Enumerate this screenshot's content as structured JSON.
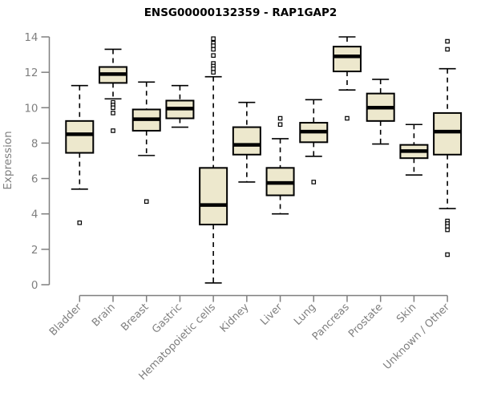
{
  "chart_data": {
    "type": "boxplot",
    "title": "ENSG00000132359 - RAP1GAP2",
    "xlabel": "",
    "ylabel": "Expression",
    "ylim": [
      0,
      14
    ],
    "yticks": [
      0,
      2,
      4,
      6,
      8,
      10,
      12,
      14
    ],
    "grid": false,
    "legend": "none",
    "categories": [
      "Bladder",
      "Brain",
      "Breast",
      "Gastric",
      "Hematopoietic cells",
      "Kidney",
      "Liver",
      "Lung",
      "Pancreas",
      "Prostate",
      "Skin",
      "Unknown / Other"
    ],
    "boxes": [
      {
        "category": "Bladder",
        "whisker_low": 5.4,
        "q1": 7.45,
        "median": 8.5,
        "q3": 9.25,
        "whisker_high": 11.25,
        "outliers": [
          3.5
        ]
      },
      {
        "category": "Brain",
        "whisker_low": 10.5,
        "q1": 11.4,
        "median": 11.9,
        "q3": 12.3,
        "whisker_high": 13.3,
        "outliers": [
          10.3,
          10.15,
          10.0,
          9.7,
          8.7
        ]
      },
      {
        "category": "Breast",
        "whisker_low": 7.3,
        "q1": 8.7,
        "median": 9.35,
        "q3": 9.9,
        "whisker_high": 11.45,
        "outliers": [
          4.7
        ]
      },
      {
        "category": "Gastric",
        "whisker_low": 8.9,
        "q1": 9.4,
        "median": 9.95,
        "q3": 10.4,
        "whisker_high": 11.25,
        "outliers": []
      },
      {
        "category": "Hematopoietic cells",
        "whisker_low": 0.1,
        "q1": 3.4,
        "median": 4.5,
        "q3": 6.6,
        "whisker_high": 11.75,
        "outliers": [
          13.9,
          13.65,
          13.5,
          13.3,
          12.95,
          12.5,
          12.35,
          12.2,
          12.0
        ]
      },
      {
        "category": "Kidney",
        "whisker_low": 5.8,
        "q1": 7.35,
        "median": 7.9,
        "q3": 8.9,
        "whisker_high": 10.3,
        "outliers": []
      },
      {
        "category": "Liver",
        "whisker_low": 4.0,
        "q1": 5.05,
        "median": 5.75,
        "q3": 6.6,
        "whisker_high": 8.25,
        "outliers": [
          9.4,
          9.05
        ]
      },
      {
        "category": "Lung",
        "whisker_low": 7.25,
        "q1": 8.05,
        "median": 8.65,
        "q3": 9.15,
        "whisker_high": 10.45,
        "outliers": [
          5.8
        ]
      },
      {
        "category": "Pancreas",
        "whisker_low": 11.0,
        "q1": 12.05,
        "median": 12.9,
        "q3": 13.45,
        "whisker_high": 14.0,
        "outliers": [
          9.4
        ]
      },
      {
        "category": "Prostate",
        "whisker_low": 7.95,
        "q1": 9.25,
        "median": 10.0,
        "q3": 10.8,
        "whisker_high": 11.6,
        "outliers": []
      },
      {
        "category": "Skin",
        "whisker_low": 6.2,
        "q1": 7.15,
        "median": 7.55,
        "q3": 7.9,
        "whisker_high": 9.05,
        "outliers": []
      },
      {
        "category": "Unknown / Other",
        "whisker_low": 4.3,
        "q1": 7.35,
        "median": 8.65,
        "q3": 9.7,
        "whisker_high": 12.2,
        "outliers": [
          13.75,
          13.3,
          3.6,
          3.45,
          3.3,
          3.1,
          1.7
        ]
      }
    ],
    "colors": {
      "box_fill": "#EDE8CD",
      "box_border": "#000000",
      "median": "#000000",
      "outlier_fill": "#ffffff",
      "axis": "#7f7f7f",
      "title_color": "#000000",
      "background": "#ffffff"
    }
  }
}
